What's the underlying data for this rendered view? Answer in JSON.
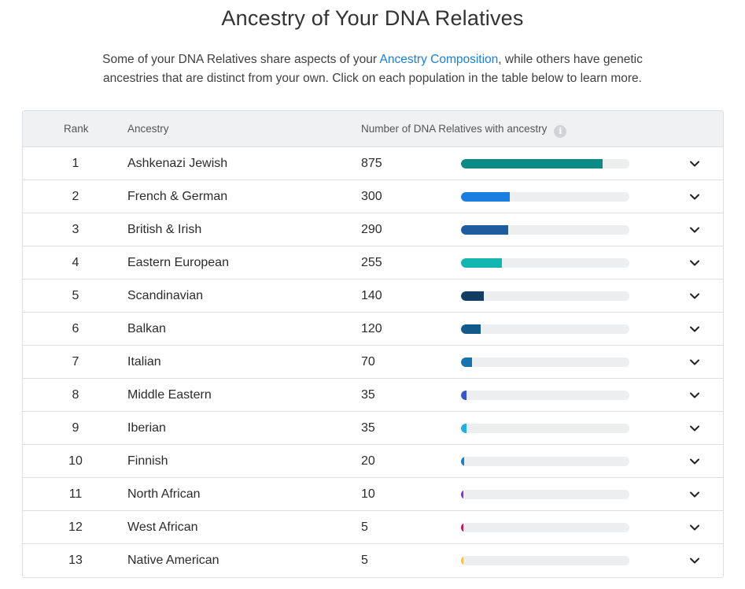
{
  "header": {
    "title": "Ancestry of Your DNA Relatives",
    "intro_before": "Some of your DNA Relatives share aspects of your ",
    "intro_link": "Ancestry Composition",
    "intro_after": ", while others have genetic ancestries that are distinct from your own. Click on each population in the table below to learn more."
  },
  "table": {
    "columns": {
      "rank": "Rank",
      "ancestry": "Ancestry",
      "count": "Number of DNA Relatives with ancestry"
    },
    "info_icon": "info-icon",
    "expand_icon": "chevron-down-icon",
    "bar_max": 1040,
    "rows": [
      {
        "rank": "1",
        "ancestry": "Ashkenazi Jewish",
        "count": "875",
        "value": 875,
        "color": "#0e8a86"
      },
      {
        "rank": "2",
        "ancestry": "French & German",
        "count": "300",
        "value": 300,
        "color": "#1a7fe0"
      },
      {
        "rank": "3",
        "ancestry": "British & Irish",
        "count": "290",
        "value": 290,
        "color": "#1f5c9e"
      },
      {
        "rank": "4",
        "ancestry": "Eastern European",
        "count": "255",
        "value": 255,
        "color": "#12b5b0"
      },
      {
        "rank": "5",
        "ancestry": "Scandinavian",
        "count": "140",
        "value": 140,
        "color": "#123d63"
      },
      {
        "rank": "6",
        "ancestry": "Balkan",
        "count": "120",
        "value": 120,
        "color": "#135a8a"
      },
      {
        "rank": "7",
        "ancestry": "Italian",
        "count": "70",
        "value": 70,
        "color": "#1673b0"
      },
      {
        "rank": "8",
        "ancestry": "Middle Eastern",
        "count": "35",
        "value": 35,
        "color": "#3b55c4"
      },
      {
        "rank": "9",
        "ancestry": "Iberian",
        "count": "35",
        "value": 35,
        "color": "#22aee0"
      },
      {
        "rank": "10",
        "ancestry": "Finnish",
        "count": "20",
        "value": 20,
        "color": "#1780c9"
      },
      {
        "rank": "11",
        "ancestry": "North African",
        "count": "10",
        "value": 10,
        "color": "#7b3fb0"
      },
      {
        "rank": "12",
        "ancestry": "West African",
        "count": "5",
        "value": 5,
        "color": "#c2185b"
      },
      {
        "rank": "13",
        "ancestry": "Native American",
        "count": "5",
        "value": 5,
        "color": "#f2c14e"
      }
    ]
  }
}
